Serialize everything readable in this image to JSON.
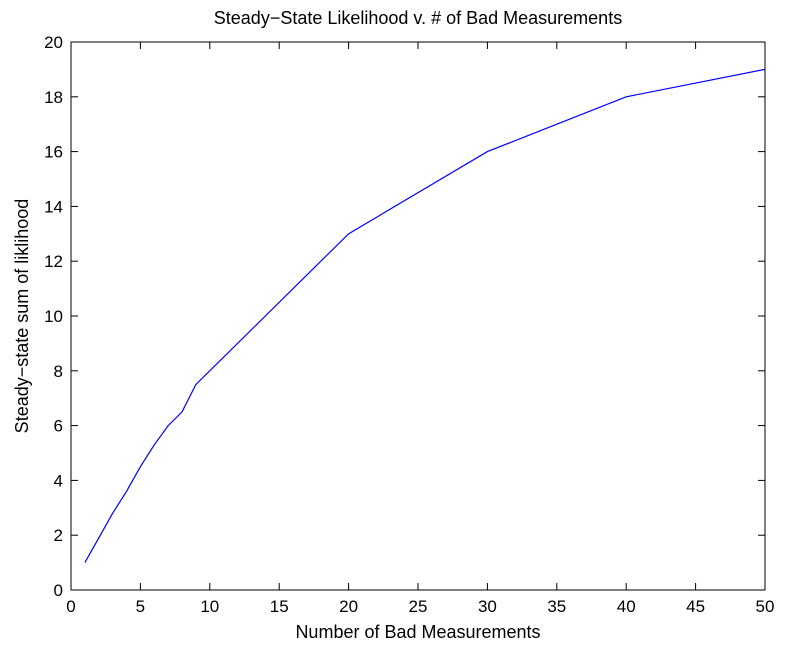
{
  "chart_data": {
    "type": "line",
    "title": "Steady−State Likelihood v. # of Bad Measurements",
    "xlabel": "Number of Bad Measurements",
    "ylabel": "Steady−state sum of liklihood",
    "xlim": [
      0,
      50
    ],
    "ylim": [
      0,
      20
    ],
    "xticks": [
      0,
      5,
      10,
      15,
      20,
      25,
      30,
      35,
      40,
      45,
      50
    ],
    "yticks": [
      0,
      2,
      4,
      6,
      8,
      10,
      12,
      14,
      16,
      18,
      20
    ],
    "grid": false,
    "line_color": "#0000ff",
    "series": [
      {
        "x": [
          1,
          2,
          3,
          4,
          5,
          6,
          7,
          8,
          9,
          20,
          30,
          40,
          50
        ],
        "y": [
          1,
          1.9,
          2.8,
          3.6,
          4.5,
          5.3,
          6,
          6.5,
          7.5,
          13,
          16,
          18,
          19
        ]
      }
    ]
  }
}
